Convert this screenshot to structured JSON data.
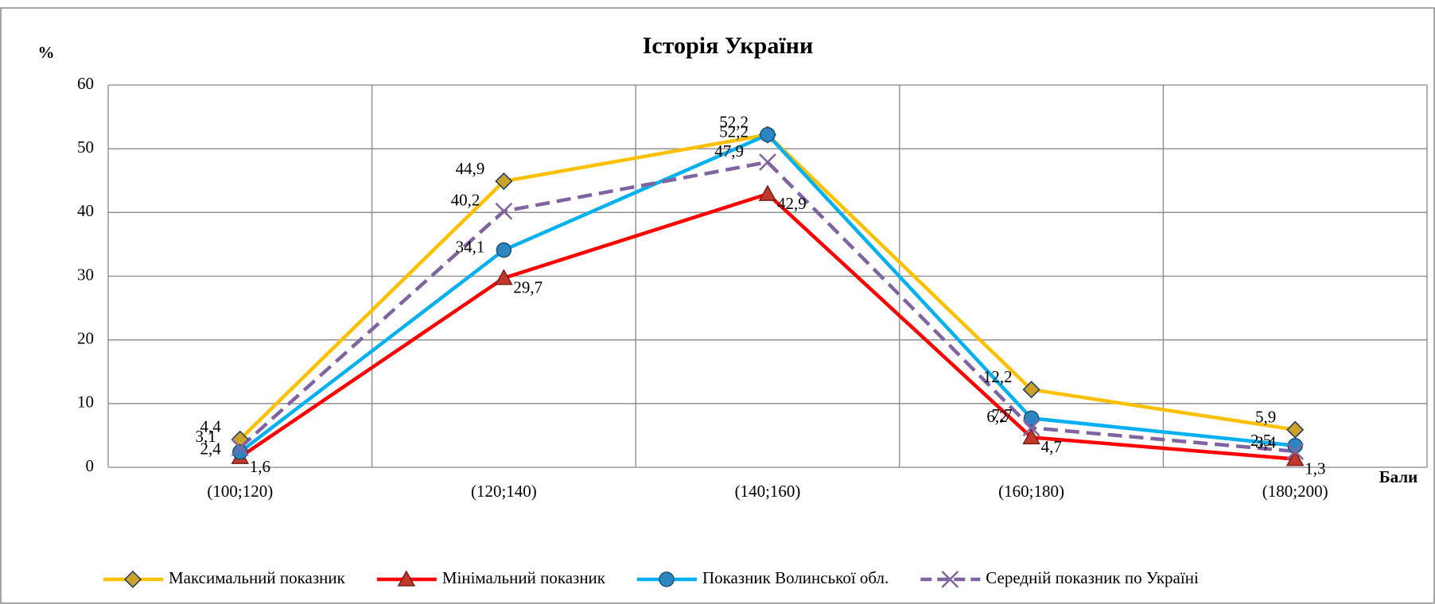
{
  "chart_data": {
    "type": "line",
    "title": "Історія України",
    "y_label": "%",
    "x_label": "Бали",
    "categories": [
      "(100;120)",
      "(120;140)",
      "(140;160)",
      "(160;180)",
      "(180;200)"
    ],
    "ylim": [
      0,
      60
    ],
    "yticks": [
      0,
      10,
      20,
      30,
      40,
      50,
      60
    ],
    "grid": true,
    "legend": "bottom",
    "series": [
      {
        "name": "Максимальний показник",
        "color": "#ffc000",
        "marker": "diamond",
        "dash": false,
        "values": [
          4.4,
          44.9,
          52.2,
          12.2,
          5.9
        ],
        "value_labels": [
          "4,4",
          "44,9",
          "52,2",
          "12,2",
          "5,9"
        ]
      },
      {
        "name": "Мінімальний показник",
        "color": "#ff0000",
        "marker": "triangle",
        "dash": false,
        "values": [
          1.6,
          29.7,
          42.9,
          4.7,
          1.3
        ],
        "value_labels": [
          "1,6",
          "29,7",
          "42,9",
          "4,7",
          "1,3"
        ]
      },
      {
        "name": "Показник Волинської обл.",
        "color": "#00b0f0",
        "marker": "circle",
        "dash": false,
        "values": [
          2.4,
          34.1,
          52.2,
          7.7,
          3.4
        ],
        "value_labels": [
          "2,4",
          "34,1",
          "52,2",
          "7,7",
          "3,4"
        ]
      },
      {
        "name": "Середній показник по Україні",
        "color": "#8064a2",
        "marker": "x",
        "dash": true,
        "values": [
          3.1,
          40.2,
          47.9,
          6.2,
          2.5
        ],
        "value_labels": [
          "3,1",
          "40,2",
          "47,9",
          "6,2",
          "2,5"
        ]
      }
    ]
  }
}
